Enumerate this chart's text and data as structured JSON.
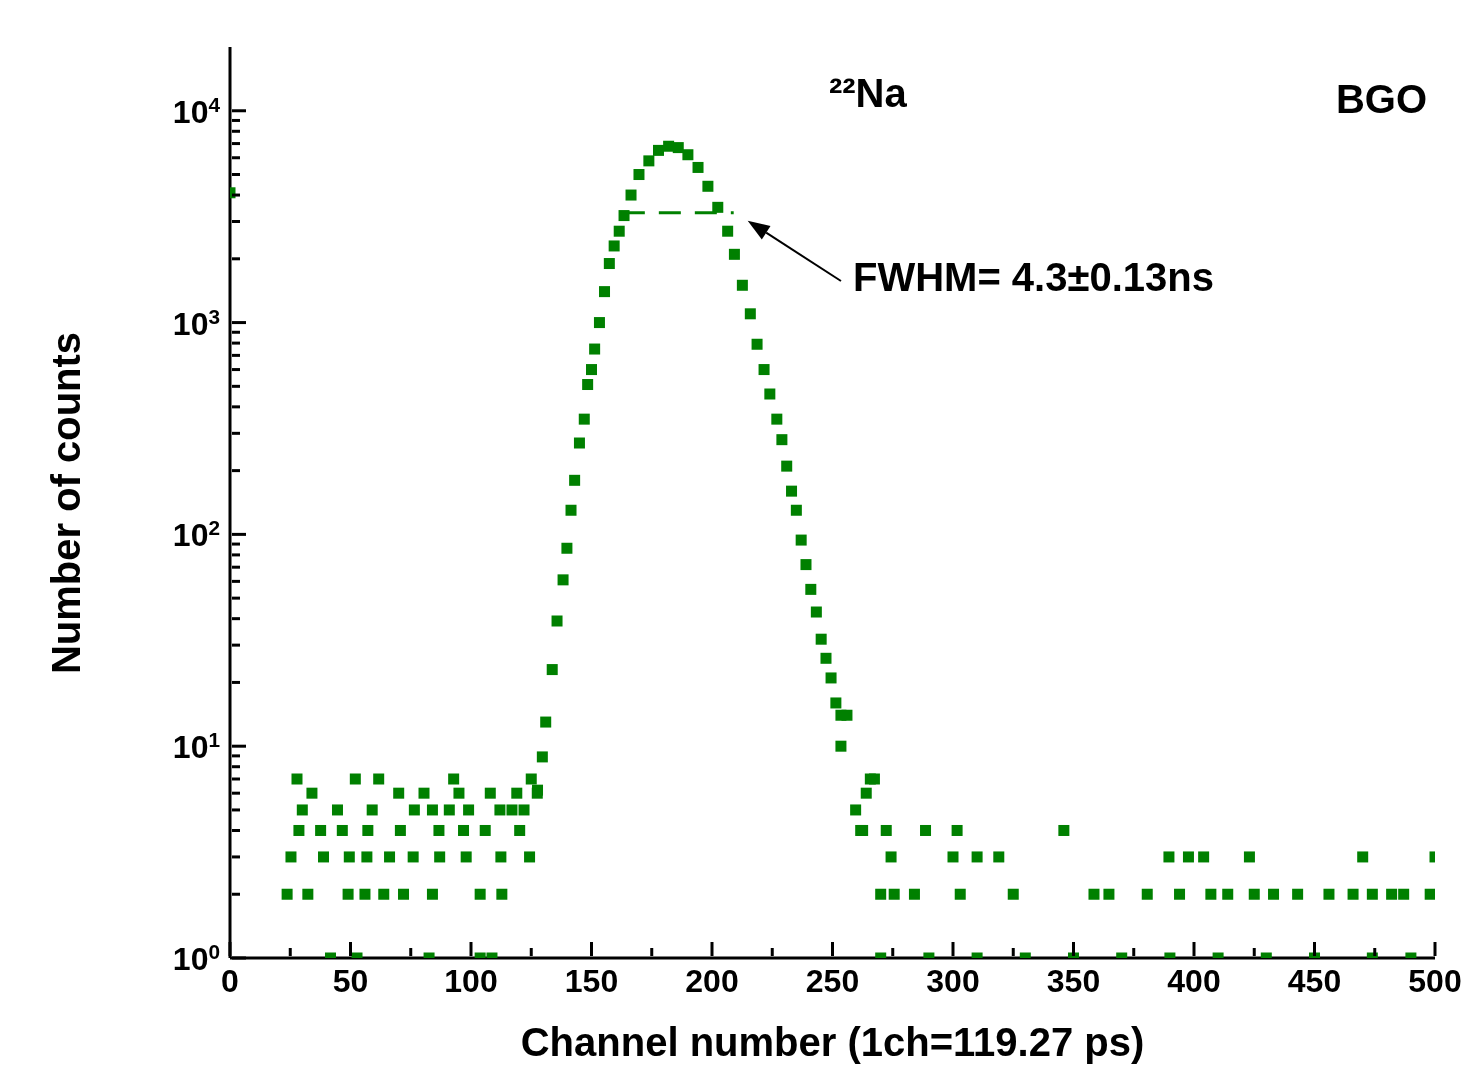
{
  "chart_data": {
    "type": "scatter",
    "xlabel": "Channel number (1ch=119.27 ps)",
    "ylabel": "Number of counts",
    "annotations": [
      "²²Na",
      "BGO",
      "FWHM= 4.3±0.13ns"
    ],
    "log": "y",
    "marker": "square",
    "xlim": [
      0,
      500
    ],
    "xticks": [
      0,
      {
        "value": 25,
        "label": null
      },
      50,
      {
        "value": 75,
        "label": null
      },
      100,
      {
        "value": 125,
        "label": null
      },
      150,
      {
        "value": 175,
        "label": null
      },
      200,
      {
        "value": 225,
        "label": null
      },
      250,
      {
        "value": 275,
        "label": null
      },
      300,
      {
        "value": 325,
        "label": null
      },
      350,
      {
        "value": 375,
        "label": null
      },
      400,
      {
        "value": 425,
        "label": null
      },
      450,
      {
        "value": 475,
        "label": null
      },
      500
    ],
    "ylim": [
      1,
      20000
    ],
    "yticks": [
      {
        "value": 1,
        "label": "10$^{0}$"
      },
      {
        "value": 2,
        "label": null
      },
      {
        "value": 3,
        "label": null
      },
      {
        "value": 4,
        "label": null
      },
      {
        "value": 5,
        "label": null
      },
      {
        "value": 6,
        "label": null
      },
      {
        "value": 7,
        "label": null
      },
      {
        "value": 8,
        "label": null
      },
      {
        "value": 9,
        "label": null
      },
      {
        "value": 10,
        "label": "10$^{1}$"
      },
      {
        "value": 20,
        "label": null
      },
      {
        "value": 30,
        "label": null
      },
      {
        "value": 40,
        "label": null
      },
      {
        "value": 50,
        "label": null
      },
      {
        "value": 60,
        "label": null
      },
      {
        "value": 70,
        "label": null
      },
      {
        "value": 80,
        "label": null
      },
      {
        "value": 90,
        "label": null
      },
      {
        "value": 100,
        "label": "10$^{2}$"
      },
      {
        "value": 200,
        "label": null
      },
      {
        "value": 300,
        "label": null
      },
      {
        "value": 400,
        "label": null
      },
      {
        "value": 500,
        "label": null
      },
      {
        "value": 600,
        "label": null
      },
      {
        "value": 700,
        "label": null
      },
      {
        "value": 800,
        "label": null
      },
      {
        "value": 900,
        "label": null
      },
      {
        "value": 1000,
        "label": "10$^{3}$"
      },
      {
        "value": 2000,
        "label": null
      },
      {
        "value": 3000,
        "label": null
      },
      {
        "value": 4000,
        "label": null
      },
      {
        "value": 5000,
        "label": null
      },
      {
        "value": 6000,
        "label": null
      },
      {
        "value": 7000,
        "label": null
      },
      {
        "value": 8000,
        "label": null
      },
      {
        "value": 9000,
        "label": null
      },
      {
        "value": 10000,
        "label": "10$^{4}$"
      }
    ],
    "series": [
      {
        "type": "scatter",
        "color": "#008000",
        "x": [
          0,
          23.7,
          25.3,
          27.8,
          28.6,
          30,
          32.3,
          34,
          37.6,
          38.8,
          41.7,
          44.6,
          46.6,
          49,
          49.5,
          52,
          52.7,
          56,
          56.8,
          57.2,
          59,
          61.7,
          63.8,
          66.2,
          70,
          70.7,
          72,
          76,
          76.5,
          80.5,
          82.6,
          84,
          84,
          86.7,
          87,
          91,
          92.8,
          95,
          96.9,
          98,
          99,
          103.8,
          103.8,
          105.9,
          108,
          108.7,
          112,
          112.4,
          112.8,
          117,
          119,
          120.2,
          122,
          124.3,
          125,
          127.5,
          127.6,
          129.6,
          131,
          133.7,
          135.7,
          138.2,
          139.8,
          141.5,
          143,
          145,
          147,
          148.4,
          150,
          151.3,
          153.3,
          155.4,
          157.4,
          159.4,
          161.5,
          163.5,
          166.4,
          169.7,
          173.8,
          177.8,
          182,
          186,
          190,
          194.2,
          198.3,
          202.4,
          206.5,
          209.3,
          212.6,
          215.9,
          218.7,
          221.6,
          224,
          226.9,
          229,
          231,
          233,
          235,
          237,
          239,
          241,
          243.3,
          245.3,
          247.3,
          249.4,
          251.4,
          253.5,
          253.5,
          256,
          259.6,
          261.7,
          262.5,
          264,
          265.7,
          267.4,
          270,
          270,
          272.3,
          274.3,
          275.6,
          284,
          288.6,
          290,
          300,
          301.7,
          303,
          310,
          310,
          319,
          325,
          330,
          346,
          350,
          358.5,
          364.7,
          370,
          380.6,
          389.6,
          390,
          394,
          397.7,
          404,
          407,
          410,
          414,
          423,
          425,
          430,
          433,
          443,
          450,
          456,
          466,
          470,
          474,
          474,
          482,
          487,
          490,
          498,
          500
        ],
        "values": [
          4100,
          2,
          3,
          7,
          4,
          5,
          2,
          6,
          4,
          3,
          1,
          5,
          4,
          2,
          3,
          7,
          1,
          2,
          3,
          4,
          5,
          7,
          2,
          3,
          6,
          4,
          2,
          3,
          5,
          6,
          1,
          2,
          5,
          4,
          3,
          5,
          7,
          6,
          4,
          3,
          5,
          2,
          1,
          4,
          6,
          1,
          5,
          3,
          2,
          5,
          6,
          4,
          5,
          3,
          7,
          6,
          6.2,
          8.9,
          13,
          23,
          39,
          61,
          86,
          130,
          180,
          270,
          350,
          510,
          600,
          750,
          1000,
          1400,
          1900,
          2300,
          2700,
          3200,
          4000,
          5000,
          5800,
          6500,
          6800,
          6700,
          6200,
          5400,
          4400,
          3500,
          2700,
          2100,
          1500,
          1100,
          790,
          600,
          460,
          350,
          280,
          210,
          160,
          130,
          94,
          72,
          55,
          43,
          32,
          26,
          21,
          16,
          14,
          10,
          14,
          5,
          4,
          4,
          6,
          7,
          7,
          1,
          2,
          4,
          3,
          2,
          2,
          4,
          1,
          3,
          4,
          2,
          1,
          3,
          3,
          2,
          1,
          4,
          1,
          2,
          2,
          1,
          2,
          3,
          1,
          2,
          3,
          3,
          2,
          1,
          2,
          3,
          2,
          1,
          2,
          2,
          1,
          2,
          2,
          3,
          1,
          2,
          2,
          2,
          1,
          2,
          3
        ]
      },
      {
        "type": "line",
        "color": "#008000",
        "line_style": "dashed",
        "marker": "none",
        "x": [
          163,
          209
        ],
        "values": [
          3300,
          3300
        ]
      }
    ]
  }
}
